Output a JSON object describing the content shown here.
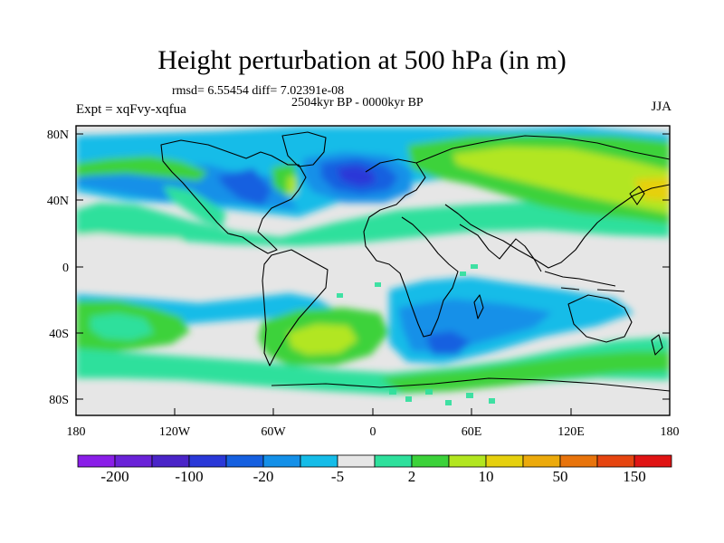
{
  "header": {
    "title": "Height perturbation at 500 hPa (in m)",
    "stats": "rmsd= 6.55454 diff= 7.02391e-08",
    "period": "2504kyr BP - 0000kyr BP",
    "experiment": "Expt = xqFvy-xqfua",
    "season": "JJA"
  },
  "axes": {
    "lat_ticks": [
      "80N",
      "40N",
      "0",
      "40S",
      "80S"
    ],
    "lon_ticks": [
      "180",
      "120W",
      "60W",
      "0",
      "60E",
      "120E",
      "180"
    ]
  },
  "colorbar": {
    "colors": [
      "#8a1ee8",
      "#6a22d8",
      "#4a24c8",
      "#2a38d8",
      "#1560e0",
      "#1490e8",
      "#15bce8",
      "#e6e6e6",
      "#2ee09c",
      "#3cd23a",
      "#b2e620",
      "#e6d00e",
      "#ecaa0c",
      "#e8740c",
      "#e64510",
      "#e01414"
    ],
    "labels": [
      "-200",
      "-100",
      "-20",
      "-5",
      "2",
      "10",
      "50",
      "150"
    ]
  },
  "palette": {
    "land_outline": "#000000",
    "neutral": "#e6e6e6"
  }
}
